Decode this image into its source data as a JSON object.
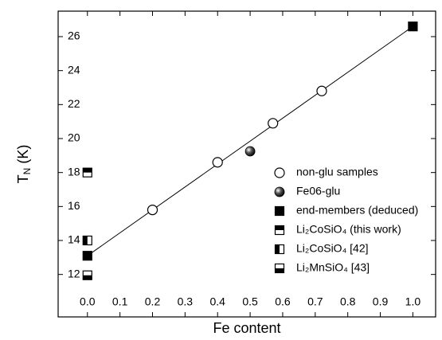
{
  "chart_data": {
    "type": "scatter",
    "x_label": "Fe content",
    "y_label": [
      "T",
      "N",
      " (K)"
    ],
    "xlim": [
      -0.09,
      1.07
    ],
    "ylim": [
      9.5,
      27.5
    ],
    "xticks": [
      {
        "value": 0,
        "label": "0.0"
      },
      0.1,
      0.2,
      0.3,
      0.4,
      0.5,
      0.6,
      0.7,
      0.8,
      0.9,
      {
        "value": 1,
        "label": "1.0"
      }
    ],
    "yticks": [
      12,
      14,
      16,
      18,
      20,
      22,
      24,
      26
    ],
    "fit_line": {
      "x": [
        0,
        1
      ],
      "y": [
        13.1,
        26.6
      ]
    },
    "series": [
      {
        "name": "non-glu samples",
        "marker": "circle-open",
        "color": "#000000",
        "x": [
          0.2,
          0.4,
          0.57,
          0.72
        ],
        "values": [
          15.8,
          18.6,
          20.9,
          22.8
        ]
      },
      {
        "name": "Fe06-glu",
        "marker": "sphere",
        "color": "#000000",
        "x": [
          0.5
        ],
        "values": [
          19.25
        ]
      },
      {
        "name": "end-members (deduced)",
        "marker": "square",
        "color": "#000000",
        "x": [
          0,
          1
        ],
        "values": [
          13.1,
          26.6
        ]
      },
      {
        "name": "Li₂CoSiO₄ (this work)",
        "marker": "square-top",
        "color": "#000000",
        "x": [
          0
        ],
        "values": [
          18.0
        ]
      },
      {
        "name": "Li₂CoSiO₄ [42]",
        "marker": "square-left",
        "color": "#000000",
        "x": [
          0
        ],
        "values": [
          14.0
        ]
      },
      {
        "name": "Li₂MnSiO₄ [43]",
        "marker": "square-bottom",
        "color": "#000000",
        "x": [
          0
        ],
        "values": [
          11.95
        ]
      }
    ]
  }
}
